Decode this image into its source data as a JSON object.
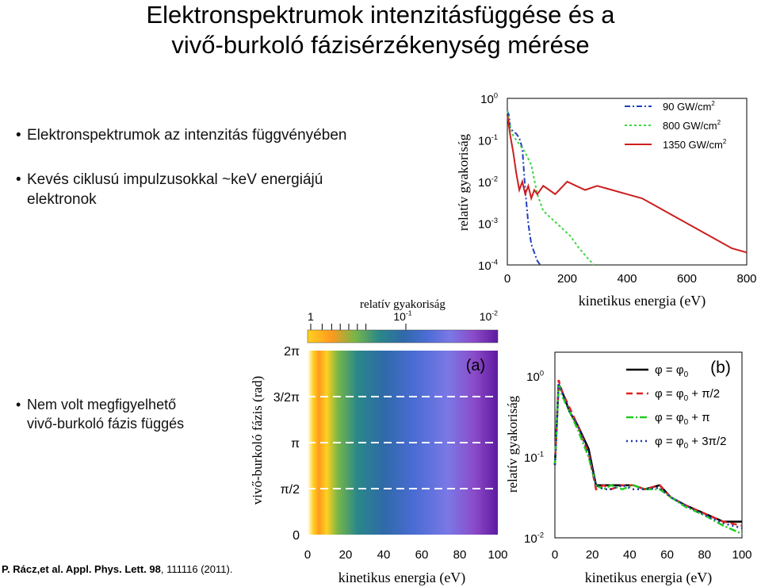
{
  "slide": {
    "title_line1": "Elektronspektrumok intenzitásfüggése és a",
    "title_line2": "vivő-burkoló fázisérzékenység mérése",
    "bullets": [
      {
        "line1": "Elektronspektrumok az intenzitás függvényében",
        "line2": ""
      },
      {
        "line1": "Kevés ciklusú impulzusokkal ~keV energiájú",
        "line2": "elektronok"
      },
      {
        "line1": "Nem volt megfigyelhető",
        "line2": "vivő-burkoló fázis függés"
      }
    ],
    "bullet_symbol": "•",
    "reference": {
      "authors": "P. Rácz,et al. Appl. Phys. Lett. ",
      "volume": "98",
      "rest": ", 111116 (2011)."
    }
  },
  "chart_data": [
    {
      "type": "line",
      "xlabel": "kinetikus energia (eV)",
      "ylabel": "relatív gyakoriság",
      "xlim": [
        0,
        800
      ],
      "ylim_log10": [
        -4,
        0
      ],
      "yscale": "log",
      "xticks": [
        "0",
        "200",
        "400",
        "600",
        "800"
      ],
      "yticks": [
        {
          "base": "10",
          "exp": "0",
          "v": 0
        },
        {
          "base": "10",
          "exp": "-1",
          "v": -1
        },
        {
          "base": "10",
          "exp": "-2",
          "v": -2
        },
        {
          "base": "10",
          "exp": "-3",
          "v": -3
        },
        {
          "base": "10",
          "exp": "-4",
          "v": -4
        }
      ],
      "legend_position": "top-right",
      "series": [
        {
          "name": "90 GW/cm",
          "sup": "2",
          "color": "#1f3fbf",
          "dash": "7,3,2,3",
          "x": [
            0,
            5,
            10,
            20,
            30,
            40,
            50,
            60,
            70,
            80,
            90,
            100,
            110
          ],
          "log10_y": [
            -0.3,
            -0.4,
            -0.7,
            -0.8,
            -0.85,
            -0.95,
            -1.2,
            -2.2,
            -3.0,
            -3.5,
            -3.7,
            -3.9,
            -4.0
          ]
        },
        {
          "name": "800  GW/cm",
          "sup": "2",
          "color": "#3dd63d",
          "dash": "3,3",
          "x": [
            0,
            10,
            20,
            40,
            60,
            80,
            100,
            120,
            150,
            180,
            210,
            240,
            270,
            290
          ],
          "log10_y": [
            -0.3,
            -0.7,
            -0.9,
            -1.1,
            -1.3,
            -1.6,
            -2.3,
            -2.7,
            -2.9,
            -3.1,
            -3.3,
            -3.6,
            -3.85,
            -4.0
          ]
        },
        {
          "name": "1350 GW/cm",
          "sup": "2",
          "color": "#cc1f1f",
          "dash": "",
          "x": [
            0,
            10,
            20,
            30,
            40,
            50,
            60,
            70,
            80,
            90,
            100,
            120,
            140,
            160,
            200,
            230,
            260,
            300,
            350,
            400,
            450,
            500,
            550,
            600,
            650,
            700,
            750,
            800
          ],
          "log10_y": [
            -0.4,
            -0.9,
            -1.3,
            -1.8,
            -2.2,
            -2.0,
            -2.3,
            -2.1,
            -2.4,
            -2.2,
            -2.3,
            -2.1,
            -2.2,
            -2.3,
            -2.0,
            -2.1,
            -2.2,
            -2.1,
            -2.2,
            -2.3,
            -2.4,
            -2.6,
            -2.8,
            -3.0,
            -3.2,
            -3.4,
            -3.6,
            -3.7
          ]
        }
      ]
    },
    {
      "type": "heatmap",
      "label": "(a)",
      "xlabel": "kinetikus energia (eV)",
      "ylabel": "vivő-burkoló fázis (rad)",
      "xlim": [
        0,
        100
      ],
      "xticks": [
        "0",
        "20",
        "40",
        "60",
        "80",
        "100"
      ],
      "yticks": [
        {
          "label": "0",
          "frac": 0
        },
        {
          "label": "π/2",
          "frac": 0.25
        },
        {
          "label": "π",
          "frac": 0.5
        },
        {
          "label": "3/2π",
          "frac": 0.75
        },
        {
          "label": "2π",
          "frac": 1
        }
      ],
      "colorbar_label": "relatív gyakoriság",
      "colorbar_ticks": [
        {
          "base": "1",
          "exp": ""
        },
        {
          "base": "10",
          "exp": "-1"
        },
        {
          "base": "10",
          "exp": "-2"
        }
      ],
      "colormap": [
        "#ffffff",
        "#ffd020",
        "#ff9a1e",
        "#78b648",
        "#2a8888",
        "#2f6aa8",
        "#4a6cd4",
        "#7b78e6",
        "#8a4ac8",
        "#5e1aa0"
      ]
    },
    {
      "type": "line",
      "label": "(b)",
      "xlabel": "kinetikus energia (eV)",
      "ylabel": "relatív gyakoriság",
      "xlim": [
        0,
        100
      ],
      "ylim_log10": [
        -2,
        0
      ],
      "yscale": "log",
      "xticks": [
        "0",
        "20",
        "40",
        "60",
        "80",
        "100"
      ],
      "yticks": [
        {
          "base": "10",
          "exp": "0",
          "v": 0
        },
        {
          "base": "10",
          "exp": "-1",
          "v": -1
        },
        {
          "base": "10",
          "exp": "-2",
          "v": -2
        }
      ],
      "legend_position": "top-right",
      "series": [
        {
          "name": "φ = φ",
          "sub": "0",
          "suffix": "",
          "color": "#000000",
          "dash": "",
          "x": [
            0,
            2,
            4,
            8,
            12,
            18,
            22,
            26,
            30,
            36,
            42,
            48,
            56,
            62,
            70,
            80,
            90,
            100
          ],
          "log10_y": [
            -1.1,
            -0.1,
            -0.2,
            -0.45,
            -0.6,
            -0.9,
            -1.35,
            -1.35,
            -1.35,
            -1.35,
            -1.35,
            -1.4,
            -1.35,
            -1.5,
            -1.6,
            -1.7,
            -1.8,
            -1.8
          ]
        },
        {
          "name": "φ = φ",
          "sub": "0",
          "suffix": " + π/2",
          "color": "#e02020",
          "dash": "8,5",
          "x": [
            0,
            2,
            4,
            8,
            12,
            18,
            22,
            26,
            30,
            36,
            42,
            48,
            56,
            62,
            70,
            80,
            90,
            100
          ],
          "log10_y": [
            -1.1,
            -0.05,
            -0.2,
            -0.4,
            -0.6,
            -0.95,
            -1.4,
            -1.35,
            -1.4,
            -1.35,
            -1.35,
            -1.4,
            -1.35,
            -1.5,
            -1.6,
            -1.7,
            -1.8,
            -1.85
          ]
        },
        {
          "name": "φ = φ",
          "sub": "0",
          "suffix": " + π",
          "color": "#22cc22",
          "dash": "9,3,2,3",
          "x": [
            0,
            2,
            4,
            8,
            12,
            18,
            22,
            26,
            30,
            36,
            42,
            48,
            56,
            62,
            70,
            80,
            90,
            100
          ],
          "log10_y": [
            -1.1,
            -0.1,
            -0.25,
            -0.45,
            -0.65,
            -1.0,
            -1.35,
            -1.4,
            -1.35,
            -1.4,
            -1.35,
            -1.4,
            -1.4,
            -1.5,
            -1.62,
            -1.72,
            -1.85,
            -1.95
          ]
        },
        {
          "name": "φ = φ",
          "sub": "0",
          "suffix": " + 3π/2",
          "color": "#2233aa",
          "dash": "2,4",
          "x": [
            0,
            2,
            4,
            8,
            12,
            18,
            22,
            26,
            30,
            36,
            42,
            48,
            56,
            62,
            70,
            80,
            90,
            100
          ],
          "log10_y": [
            -1.1,
            -0.1,
            -0.2,
            -0.45,
            -0.6,
            -0.95,
            -1.35,
            -1.4,
            -1.4,
            -1.35,
            -1.4,
            -1.4,
            -1.38,
            -1.5,
            -1.6,
            -1.72,
            -1.82,
            -1.88
          ]
        }
      ]
    }
  ]
}
